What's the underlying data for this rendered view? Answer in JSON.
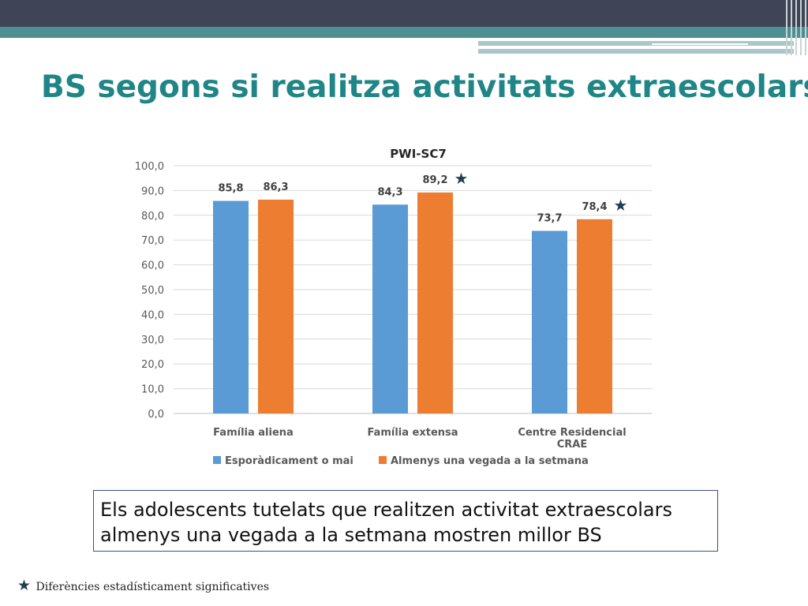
{
  "slide": {
    "title": "BS segons si realitza activitats extraescolars",
    "note": "Els adolescents tutelats que realitzen activitat extraescolars almenys una vegada a la setmana mostren millor BS",
    "footnote_star": "★",
    "footnote_text": "Diferències estadísticament significatives"
  },
  "chart_data": {
    "type": "bar",
    "title": "PWI-SC7",
    "categories": [
      "Família aliena",
      "Família extensa",
      "Centre Residencial CRAE"
    ],
    "category_lines": [
      [
        "Família aliena"
      ],
      [
        "Família extensa"
      ],
      [
        "Centre Residencial",
        "CRAE"
      ]
    ],
    "series": [
      {
        "name": "Esporàdicament o mai",
        "values": [
          85.8,
          84.3,
          73.7
        ],
        "labels": [
          "85,8",
          "84,3",
          "73,7"
        ],
        "color": "#5b9bd5"
      },
      {
        "name": "Almenys una vegada a la setmana",
        "values": [
          86.3,
          89.2,
          78.4
        ],
        "labels": [
          "86,3",
          "89,2",
          "78,4"
        ],
        "color": "#ed7d31",
        "significant": [
          false,
          true,
          true
        ]
      }
    ],
    "ylim": [
      0,
      100
    ],
    "yticks": [
      "0,0",
      "10,0",
      "20,0",
      "30,0",
      "40,0",
      "50,0",
      "60,0",
      "70,0",
      "80,0",
      "90,0",
      "100,0"
    ],
    "grid": true,
    "legend": "bottom",
    "marker_symbol": "★",
    "colors": {
      "axis_text": "#595959",
      "grid": "#d9d9d9",
      "label": "#404040",
      "star": "#1f3f4f"
    }
  }
}
